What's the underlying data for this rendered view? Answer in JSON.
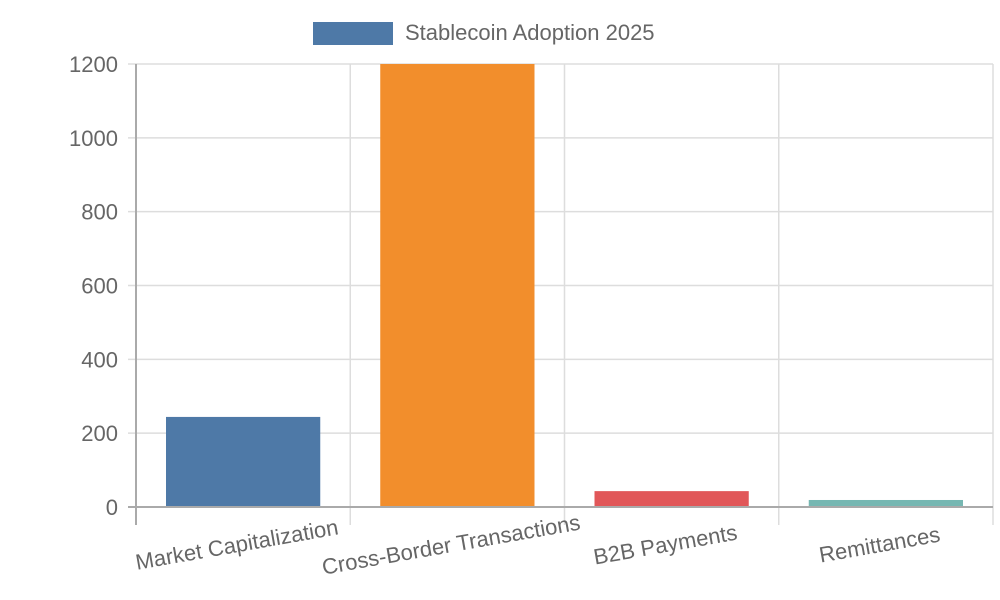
{
  "chart_data": {
    "type": "bar",
    "title": "",
    "legend": [
      {
        "label": "Stablecoin Adoption 2025",
        "color": "#4e79a7"
      }
    ],
    "categories": [
      "Market Capitalization",
      "Cross-Border Transactions",
      "B2B Payments",
      "Remittances"
    ],
    "series": [
      {
        "name": "Stablecoin Adoption 2025",
        "values": [
          244,
          1200,
          43,
          19
        ],
        "colors": [
          "#4e79a7",
          "#f28e2c",
          "#e15759",
          "#76b7b2"
        ]
      }
    ],
    "yticks": [
      0,
      200,
      400,
      600,
      800,
      1000,
      1200
    ],
    "ylim": [
      0,
      1200
    ],
    "xlabel": "",
    "ylabel": "",
    "grid": true,
    "legend_position": "top"
  }
}
